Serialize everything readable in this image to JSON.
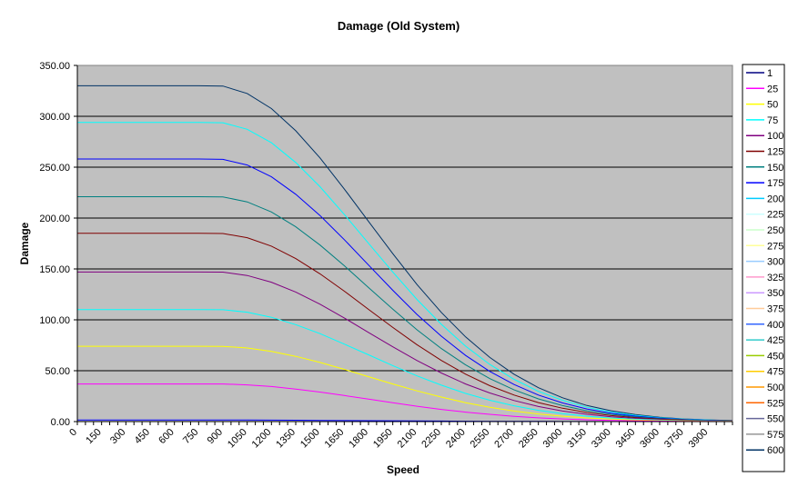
{
  "chart_data": {
    "type": "line",
    "title": "Damage (Old System)",
    "xlabel": "Speed",
    "ylabel": "Damage",
    "ylim": [
      0,
      350
    ],
    "xlim": [
      0,
      4050
    ],
    "grid": true,
    "plot_background": "#C0C0C0",
    "legend_placement": "right",
    "y_ticks": [
      "0.00",
      "50.00",
      "100.00",
      "150.00",
      "200.00",
      "250.00",
      "300.00",
      "350.00"
    ],
    "x_ticks": [
      "0",
      "150",
      "300",
      "450",
      "600",
      "750",
      "900",
      "1050",
      "1200",
      "1350",
      "1500",
      "1650",
      "1800",
      "1950",
      "2100",
      "2250",
      "2400",
      "2550",
      "2700",
      "2850",
      "3000",
      "3150",
      "3300",
      "3450",
      "3600",
      "3750",
      "3900"
    ],
    "x": [
      0,
      150,
      300,
      450,
      600,
      750,
      900,
      1050,
      1200,
      1350,
      1500,
      1650,
      1800,
      1950,
      2100,
      2250,
      2400,
      2550,
      2700,
      2850,
      3000,
      3150,
      3300,
      3450,
      3600,
      3750,
      3900,
      4050
    ],
    "series": [
      {
        "color": "#003366",
        "values": [
          330,
          330,
          330,
          330,
          330,
          330,
          329.7,
          322.4,
          307.6,
          285.8,
          259.1,
          228.7,
          196.7,
          165.0,
          134.6,
          107.3,
          83.2,
          63.0,
          46.5,
          33.3,
          23.4,
          15.8,
          10.6,
          6.9,
          4.3,
          2.6,
          1.7,
          1.0
        ]
      },
      {
        "color": "#00FFFF",
        "values": [
          294,
          294,
          294,
          294,
          294,
          294,
          293.7,
          287.2,
          274.0,
          254.6,
          230.8,
          203.7,
          175.2,
          147.0,
          120.0,
          95.6,
          74.1,
          56.2,
          41.5,
          29.7,
          20.9,
          14.1,
          9.4,
          6.2,
          3.8,
          2.4,
          1.5,
          0.9
        ]
      },
      {
        "color": "#0000FF",
        "values": [
          258,
          258,
          258,
          258,
          258,
          258,
          257.7,
          252.1,
          240.5,
          223.4,
          202.5,
          178.8,
          153.8,
          129.0,
          105.3,
          83.9,
          65.0,
          49.3,
          36.4,
          26.1,
          18.3,
          12.4,
          8.3,
          5.4,
          3.4,
          2.1,
          1.3,
          0.8
        ]
      },
      {
        "color": "#008080",
        "values": [
          221,
          221,
          221,
          221,
          221,
          221,
          220.8,
          215.9,
          206.0,
          191.4,
          173.5,
          153.2,
          131.7,
          110.5,
          90.2,
          71.8,
          55.7,
          42.2,
          31.2,
          22.3,
          15.7,
          10.6,
          7.1,
          4.6,
          2.9,
          1.8,
          1.1,
          0.7
        ]
      },
      {
        "color": "#800000",
        "values": [
          185,
          185,
          185,
          185,
          185,
          185,
          184.8,
          180.7,
          172.4,
          160.2,
          145.2,
          128.2,
          110.3,
          92.5,
          75.5,
          60.1,
          46.6,
          35.3,
          26.1,
          18.7,
          13.1,
          8.9,
          5.9,
          3.9,
          2.4,
          1.5,
          0.9,
          0.6
        ]
      },
      {
        "color": "#800080",
        "values": [
          147,
          147,
          147,
          147,
          147,
          147,
          146.9,
          143.6,
          137.0,
          127.3,
          115.4,
          101.9,
          87.6,
          73.5,
          60.0,
          47.8,
          37.0,
          28.1,
          20.7,
          14.8,
          10.4,
          7.1,
          4.7,
          3.1,
          1.9,
          1.2,
          0.7,
          0.4
        ]
      },
      {
        "color": "#00FFFF",
        "values": [
          110,
          110,
          110,
          110,
          110,
          110,
          109.9,
          107.5,
          102.5,
          95.3,
          86.4,
          76.2,
          65.6,
          55.0,
          44.9,
          35.8,
          27.7,
          21.0,
          15.5,
          11.1,
          7.8,
          5.3,
          3.5,
          2.3,
          1.4,
          0.9,
          0.6,
          0.3
        ]
      },
      {
        "color": "#FFFF00",
        "values": [
          74,
          74,
          74,
          74,
          74,
          74,
          73.9,
          72.3,
          69.0,
          64.1,
          58.1,
          51.3,
          44.1,
          37.0,
          30.2,
          24.1,
          18.6,
          14.1,
          10.4,
          7.5,
          5.3,
          3.6,
          2.4,
          1.6,
          1.0,
          0.6,
          0.4,
          0.2
        ]
      },
      {
        "color": "#FF00FF",
        "values": [
          37,
          37,
          37,
          37,
          37,
          37,
          37.0,
          36.1,
          34.5,
          32.0,
          29.0,
          25.6,
          22.1,
          18.5,
          15.1,
          12.0,
          9.3,
          7.1,
          5.2,
          3.7,
          2.6,
          1.8,
          1.2,
          0.8,
          0.5,
          0.3,
          0.2,
          0.1
        ]
      },
      {
        "color": "#0000FF",
        "values": [
          1.5,
          1.5,
          1.5,
          1.5,
          1.5,
          1.5,
          1.5,
          1.5,
          1.4,
          1.3,
          1.2,
          1.0,
          0.9,
          0.8,
          0.6,
          0.5,
          0.4,
          0.3,
          0.2,
          0.2,
          0.1,
          0.1,
          0,
          0,
          0,
          0,
          0,
          0
        ]
      }
    ],
    "legend": [
      {
        "label": "1",
        "color": "#000080"
      },
      {
        "label": "25",
        "color": "#FF00FF"
      },
      {
        "label": "50",
        "color": "#FFFF00"
      },
      {
        "label": "75",
        "color": "#00FFFF"
      },
      {
        "label": "100",
        "color": "#800080"
      },
      {
        "label": "125",
        "color": "#800000"
      },
      {
        "label": "150",
        "color": "#008080"
      },
      {
        "label": "175",
        "color": "#0000FF"
      },
      {
        "label": "200",
        "color": "#00CCFF"
      },
      {
        "label": "225",
        "color": "#CCFFFF"
      },
      {
        "label": "250",
        "color": "#CCFFCC"
      },
      {
        "label": "275",
        "color": "#FFFF99"
      },
      {
        "label": "300",
        "color": "#99CCFF"
      },
      {
        "label": "325",
        "color": "#FF99CC"
      },
      {
        "label": "350",
        "color": "#CC99FF"
      },
      {
        "label": "375",
        "color": "#FFCC99"
      },
      {
        "label": "400",
        "color": "#3366FF"
      },
      {
        "label": "425",
        "color": "#33CCCC"
      },
      {
        "label": "450",
        "color": "#99CC00"
      },
      {
        "label": "475",
        "color": "#FFCC00"
      },
      {
        "label": "500",
        "color": "#FF9900"
      },
      {
        "label": "525",
        "color": "#FF6600"
      },
      {
        "label": "550",
        "color": "#666699"
      },
      {
        "label": "575",
        "color": "#969696"
      },
      {
        "label": "600",
        "color": "#003366"
      }
    ]
  }
}
